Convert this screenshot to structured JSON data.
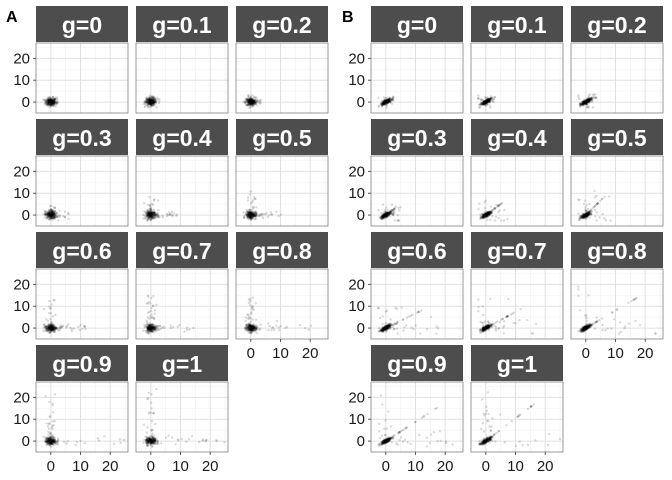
{
  "figure": {
    "colors": {
      "strip_fill": "#4d4d4d",
      "strip_text": "#ffffff",
      "panel_border": "#808080",
      "grid_major": "#e0e0e0",
      "grid_minor": "#f0f0f0",
      "point": "#000000",
      "tick_text": "#1a1a1a"
    }
  },
  "chart_data": [
    {
      "type": "scatter",
      "panel_label": "A",
      "facet_variable": "g",
      "facets": [
        "g=0",
        "g=0.1",
        "g=0.2",
        "g=0.3",
        "g=0.4",
        "g=0.5",
        "g=0.6",
        "g=0.7",
        "g=0.8",
        "g=0.9",
        "g=1"
      ],
      "facet_layout": "wrap, 3 columns, 4 rows",
      "xlim": [
        -5,
        26
      ],
      "ylim": [
        -5,
        27
      ],
      "x_ticks": [
        0,
        10,
        20
      ],
      "y_ticks": [
        0,
        10,
        20
      ],
      "x_tick_labels": [
        "0",
        "10",
        "20"
      ],
      "y_tick_labels": [
        "0",
        "10",
        "20"
      ],
      "xlabel": "",
      "ylabel": "",
      "grid": true,
      "point_alpha": 0.15,
      "series": [
        {
          "facet": "g=0",
          "x_range": [
            -2.5,
            2.5
          ],
          "y_range": [
            -2.5,
            2.5
          ],
          "max_x": 2.5,
          "max_y": 2.5
        },
        {
          "facet": "g=0.1",
          "x_range": [
            -2.5,
            2.5
          ],
          "y_range": [
            -2.5,
            3
          ],
          "max_x": 3,
          "max_y": 3
        },
        {
          "facet": "g=0.2",
          "x_range": [
            -2.5,
            3
          ],
          "y_range": [
            -2.5,
            3.5
          ],
          "max_x": 3.5,
          "max_y": 3.5
        },
        {
          "facet": "g=0.3",
          "x_range": [
            -2.5,
            5
          ],
          "y_range": [
            -2.5,
            5
          ],
          "max_x": 7,
          "max_y": 5
        },
        {
          "facet": "g=0.4",
          "x_range": [
            -2.5,
            7
          ],
          "y_range": [
            -2.5,
            7
          ],
          "max_x": 10,
          "max_y": 9
        },
        {
          "facet": "g=0.5",
          "x_range": [
            -2.5,
            8
          ],
          "y_range": [
            -2.5,
            8
          ],
          "max_x": 12,
          "max_y": 11
        },
        {
          "facet": "g=0.6",
          "x_range": [
            -2.5,
            8
          ],
          "y_range": [
            -2.5,
            10
          ],
          "max_x": 12,
          "max_y": 15
        },
        {
          "facet": "g=0.7",
          "x_range": [
            -2.5,
            10
          ],
          "y_range": [
            -2.5,
            12
          ],
          "max_x": 15,
          "max_y": 15
        },
        {
          "facet": "g=0.8",
          "x_range": [
            -2.5,
            15
          ],
          "y_range": [
            -2.5,
            12
          ],
          "max_x": 22,
          "max_y": 14
        },
        {
          "facet": "g=0.9",
          "x_range": [
            -2.5,
            15
          ],
          "y_range": [
            -2.5,
            15
          ],
          "max_x": 25,
          "max_y": 26
        },
        {
          "facet": "g=1",
          "x_range": [
            -2.5,
            18
          ],
          "y_range": [
            -2.5,
            22
          ],
          "max_x": 25,
          "max_y": 26
        }
      ]
    },
    {
      "type": "scatter",
      "panel_label": "B",
      "facet_variable": "g",
      "facets": [
        "g=0",
        "g=0.1",
        "g=0.2",
        "g=0.3",
        "g=0.4",
        "g=0.5",
        "g=0.6",
        "g=0.7",
        "g=0.8",
        "g=0.9",
        "g=1"
      ],
      "facet_layout": "wrap, 3 columns, 4 rows",
      "xlim": [
        -5,
        26
      ],
      "ylim": [
        -5,
        27
      ],
      "x_ticks": [
        0,
        10,
        20
      ],
      "y_ticks": [
        0,
        10,
        20
      ],
      "x_tick_labels": [
        "0",
        "10",
        "20"
      ],
      "y_tick_labels": [
        "0",
        "10",
        "20"
      ],
      "xlabel": "",
      "ylabel": "",
      "grid": true,
      "point_alpha": 0.15,
      "series": [
        {
          "facet": "g=0",
          "x_range": [
            -2.5,
            2.5
          ],
          "y_range": [
            -2,
            2
          ],
          "max_x": 2.5,
          "max_y": 2.5,
          "correlated": true
        },
        {
          "facet": "g=0.1",
          "x_range": [
            -2.5,
            2.5
          ],
          "y_range": [
            -2,
            2.5
          ],
          "max_x": 3,
          "max_y": 3,
          "correlated": true
        },
        {
          "facet": "g=0.2",
          "x_range": [
            -2,
            3
          ],
          "y_range": [
            -2,
            3
          ],
          "max_x": 3.5,
          "max_y": 3.5,
          "correlated": true
        },
        {
          "facet": "g=0.3",
          "x_range": [
            -2.5,
            4
          ],
          "y_range": [
            -2.5,
            4
          ],
          "max_x": 5,
          "max_y": 5,
          "correlated": true
        },
        {
          "facet": "g=0.4",
          "x_range": [
            -2.5,
            5
          ],
          "y_range": [
            -2.5,
            5
          ],
          "max_x": 8,
          "max_y": 8,
          "correlated": true
        },
        {
          "facet": "g=0.5",
          "x_range": [
            -2.5,
            6
          ],
          "y_range": [
            -2.5,
            8
          ],
          "max_x": 9,
          "max_y": 12,
          "correlated": true
        },
        {
          "facet": "g=0.6",
          "x_range": [
            -2.5,
            8
          ],
          "y_range": [
            -2.5,
            8
          ],
          "max_x": 18,
          "max_y": 12,
          "correlated": true
        },
        {
          "facet": "g=0.7",
          "x_range": [
            -2.5,
            10
          ],
          "y_range": [
            -2.5,
            10
          ],
          "max_x": 19,
          "max_y": 14,
          "correlated": true
        },
        {
          "facet": "g=0.8",
          "x_range": [
            -2.5,
            12
          ],
          "y_range": [
            -2.5,
            12
          ],
          "max_x": 25,
          "max_y": 20,
          "correlated": true
        },
        {
          "facet": "g=0.9",
          "x_range": [
            -2.5,
            15
          ],
          "y_range": [
            -2.5,
            15
          ],
          "max_x": 25,
          "max_y": 22,
          "correlated": true
        },
        {
          "facet": "g=1",
          "x_range": [
            -2.5,
            18
          ],
          "y_range": [
            -2.5,
            22
          ],
          "max_x": 25,
          "max_y": 26,
          "correlated": true
        }
      ]
    }
  ]
}
